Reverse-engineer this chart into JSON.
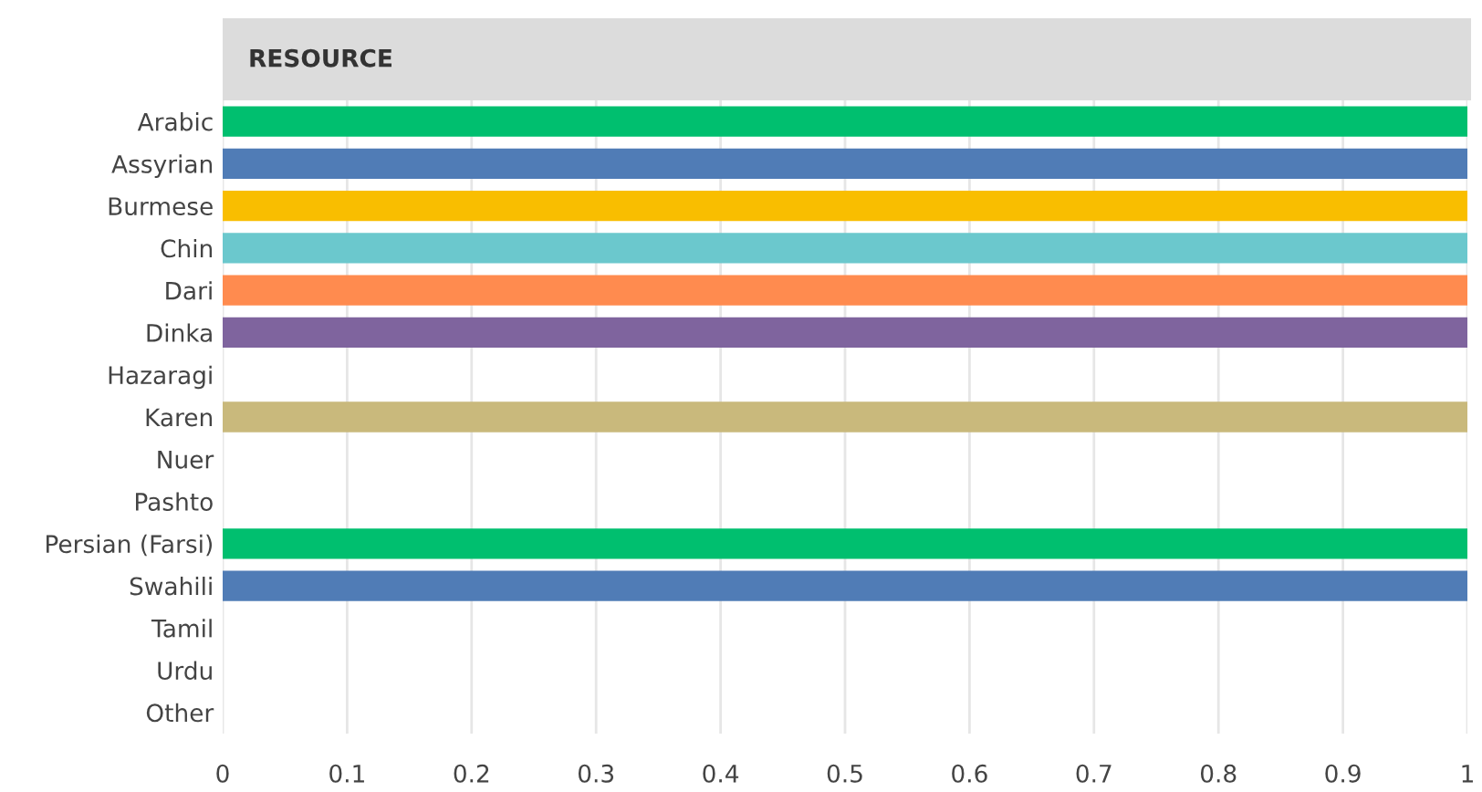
{
  "chart_data": {
    "type": "bar",
    "orientation": "horizontal",
    "title": "RESOURCE",
    "categories": [
      "Arabic",
      "Assyrian",
      "Burmese",
      "Chin",
      "Dari",
      "Dinka",
      "Hazaragi",
      "Karen",
      "Nuer",
      "Pashto",
      "Persian (Farsi)",
      "Swahili",
      "Tamil",
      "Urdu",
      "Other"
    ],
    "values": [
      1,
      1,
      1,
      1,
      1,
      1,
      0,
      1,
      0,
      0,
      1,
      1,
      0,
      0,
      0
    ],
    "colors": [
      "#00bf6f",
      "#507cb6",
      "#f9be00",
      "#6bc8cd",
      "#ff8b4f",
      "#7f649e",
      "#a0a0a0",
      "#c9b97c",
      "#a0a0a0",
      "#a0a0a0",
      "#00bf6f",
      "#507cb6",
      "#a0a0a0",
      "#a0a0a0",
      "#a0a0a0"
    ],
    "xlim": [
      0,
      1
    ],
    "xticks": [
      0,
      0.1,
      0.2,
      0.3,
      0.4,
      0.5,
      0.6,
      0.7,
      0.8,
      0.9,
      1
    ],
    "grid": "x"
  }
}
